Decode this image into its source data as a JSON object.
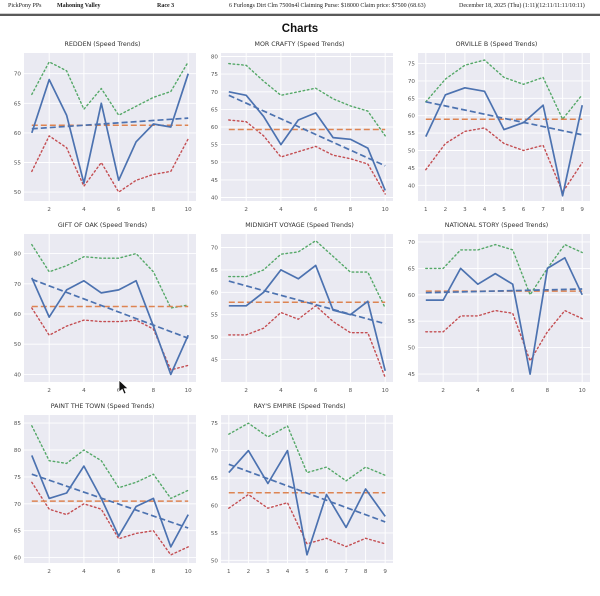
{
  "header": {
    "app": "PickPony PPs",
    "track": "Mahoning Valley",
    "race": "Race 3",
    "conditions": "6 Furlongs Dirt Clm 7500n4l Claiming Purse: $18000 Claim price: $7500 (68.63)",
    "date": "December 18, 2025 (Thu) (1:11)(12:11/11:11/10:11)"
  },
  "page_title": "Charts",
  "colors": {
    "speed": "#4c72b0",
    "trend": "#4c72b0",
    "upper": "#55a868",
    "lower": "#c44e52",
    "average": "#dd8452",
    "plot_bg": "#eaeaf2",
    "grid": "#ffffff"
  },
  "chart_data": [
    {
      "type": "line",
      "title": "REDDEN (Speed Trends)",
      "x": [
        1,
        2,
        3,
        4,
        5,
        6,
        7,
        8,
        9,
        10
      ],
      "xticks": [
        2,
        4,
        6,
        8,
        10
      ],
      "yticks": [
        50,
        55,
        60,
        65,
        70
      ],
      "ylim": [
        48.5,
        73.5
      ],
      "series": [
        {
          "name": "upper-band",
          "style": "dotted",
          "color": "#55a868",
          "width": 1.4,
          "values": [
            66.5,
            72,
            70.5,
            64,
            67.5,
            63,
            64.5,
            66,
            67,
            72
          ]
        },
        {
          "name": "lower-band",
          "style": "dotted",
          "color": "#c44e52",
          "width": 1.4,
          "values": [
            53.5,
            59.5,
            57.5,
            51,
            55,
            50,
            52,
            53,
            53.5,
            59
          ]
        },
        {
          "name": "average",
          "style": "dashed",
          "color": "#dd8452",
          "width": 1.5,
          "endpoints": [
            61.3,
            61.3
          ]
        },
        {
          "name": "trend",
          "style": "dashed",
          "color": "#4c72b0",
          "width": 1.7,
          "endpoints": [
            60.7,
            62.5
          ]
        },
        {
          "name": "speed",
          "style": "solid",
          "color": "#4c72b0",
          "width": 1.7,
          "values": [
            60,
            69,
            63,
            51.5,
            65,
            52,
            58.5,
            61.5,
            61,
            70
          ]
        }
      ]
    },
    {
      "type": "line",
      "title": "MOR CRAFTY (Speed Trends)",
      "x": [
        1,
        2,
        3,
        4,
        5,
        6,
        7,
        8,
        9,
        10
      ],
      "xticks": [
        2,
        4,
        6,
        8,
        10
      ],
      "yticks": [
        40,
        45,
        50,
        55,
        60,
        65,
        70,
        75,
        80
      ],
      "ylim": [
        39,
        81
      ],
      "series": [
        {
          "name": "upper-band",
          "style": "dotted",
          "color": "#55a868",
          "width": 1.4,
          "values": [
            78,
            77.5,
            73,
            69,
            70,
            71,
            68,
            66,
            64.5,
            57.5
          ]
        },
        {
          "name": "lower-band",
          "style": "dotted",
          "color": "#c44e52",
          "width": 1.4,
          "values": [
            62,
            61.5,
            57.5,
            51.5,
            53,
            54.5,
            52,
            51,
            49.5,
            41
          ]
        },
        {
          "name": "average",
          "style": "dashed",
          "color": "#dd8452",
          "width": 1.5,
          "endpoints": [
            59.3,
            59.3
          ]
        },
        {
          "name": "trend",
          "style": "dashed",
          "color": "#4c72b0",
          "width": 1.7,
          "endpoints": [
            69,
            49
          ]
        },
        {
          "name": "speed",
          "style": "solid",
          "color": "#4c72b0",
          "width": 1.7,
          "values": [
            70,
            69,
            63,
            55,
            62,
            64,
            57,
            56.5,
            54,
            42
          ]
        }
      ]
    },
    {
      "type": "line",
      "title": "ORVILLE B (Speed Trends)",
      "x": [
        1,
        2,
        3,
        4,
        5,
        6,
        7,
        8,
        9
      ],
      "xticks": [
        1,
        2,
        3,
        4,
        5,
        6,
        7,
        8,
        9
      ],
      "yticks": [
        40,
        45,
        50,
        55,
        60,
        65,
        70,
        75
      ],
      "ylim": [
        35.5,
        78
      ],
      "series": [
        {
          "name": "upper-band",
          "style": "dotted",
          "color": "#55a868",
          "width": 1.4,
          "values": [
            64,
            70.5,
            74.5,
            76,
            71,
            69,
            71,
            59,
            66
          ]
        },
        {
          "name": "lower-band",
          "style": "dotted",
          "color": "#c44e52",
          "width": 1.4,
          "values": [
            44.5,
            52,
            55.5,
            56.5,
            52,
            50,
            51.5,
            38,
            46.5
          ]
        },
        {
          "name": "average",
          "style": "dashed",
          "color": "#dd8452",
          "width": 1.5,
          "endpoints": [
            59,
            59
          ]
        },
        {
          "name": "trend",
          "style": "dashed",
          "color": "#4c72b0",
          "width": 1.7,
          "endpoints": [
            64,
            54.5
          ]
        },
        {
          "name": "speed",
          "style": "solid",
          "color": "#4c72b0",
          "width": 1.7,
          "values": [
            54,
            66,
            68,
            67,
            56,
            58,
            63,
            37,
            63
          ]
        }
      ]
    },
    {
      "type": "line",
      "title": "GIFT OF OAK (Speed Trends)",
      "x": [
        1,
        2,
        3,
        4,
        5,
        6,
        7,
        8,
        9,
        10
      ],
      "xticks": [
        2,
        4,
        6,
        8,
        10
      ],
      "yticks": [
        40,
        50,
        60,
        70,
        80
      ],
      "ylim": [
        37.5,
        86.5
      ],
      "series": [
        {
          "name": "upper-band",
          "style": "dotted",
          "color": "#55a868",
          "width": 1.4,
          "values": [
            83,
            74,
            76,
            79,
            78.5,
            78.5,
            80,
            74,
            62,
            63
          ]
        },
        {
          "name": "lower-band",
          "style": "dotted",
          "color": "#c44e52",
          "width": 1.4,
          "values": [
            62,
            53,
            56,
            58,
            57.5,
            57.5,
            58,
            55,
            41.5,
            43
          ]
        },
        {
          "name": "average",
          "style": "dashed",
          "color": "#dd8452",
          "width": 1.5,
          "endpoints": [
            62.5,
            62.5
          ]
        },
        {
          "name": "trend",
          "style": "dashed",
          "color": "#4c72b0",
          "width": 1.7,
          "endpoints": [
            71.5,
            52
          ]
        },
        {
          "name": "speed",
          "style": "solid",
          "color": "#4c72b0",
          "width": 1.7,
          "values": [
            72,
            59,
            68,
            71,
            67,
            68,
            71,
            56,
            40,
            53
          ]
        }
      ]
    },
    {
      "type": "line",
      "title": "MIDNIGHT VOYAGE (Speed Trends)",
      "x": [
        1,
        2,
        3,
        4,
        5,
        6,
        7,
        8,
        9,
        10
      ],
      "xticks": [
        2,
        4,
        6,
        8,
        10
      ],
      "yticks": [
        45,
        50,
        55,
        60,
        65,
        70
      ],
      "ylim": [
        40,
        73
      ],
      "series": [
        {
          "name": "upper-band",
          "style": "dotted",
          "color": "#55a868",
          "width": 1.4,
          "values": [
            63.5,
            63.5,
            65,
            68.5,
            69,
            71.5,
            68,
            64.5,
            64.5,
            56.5
          ]
        },
        {
          "name": "lower-band",
          "style": "dotted",
          "color": "#c44e52",
          "width": 1.4,
          "values": [
            50.5,
            50.5,
            52,
            55.5,
            54,
            57,
            53.5,
            51,
            51,
            41
          ]
        },
        {
          "name": "average",
          "style": "dashed",
          "color": "#dd8452",
          "width": 1.5,
          "endpoints": [
            57.8,
            57.8
          ]
        },
        {
          "name": "trend",
          "style": "dashed",
          "color": "#4c72b0",
          "width": 1.7,
          "endpoints": [
            62.5,
            53
          ]
        },
        {
          "name": "speed",
          "style": "solid",
          "color": "#4c72b0",
          "width": 1.7,
          "values": [
            57,
            57,
            60,
            65,
            63,
            66,
            56,
            55,
            58,
            42.5
          ]
        }
      ]
    },
    {
      "type": "line",
      "title": "NATIONAL STORY (Speed Trends)",
      "x": [
        1,
        2,
        3,
        4,
        5,
        6,
        7,
        8,
        9,
        10
      ],
      "xticks": [
        2,
        4,
        6,
        8,
        10
      ],
      "yticks": [
        45,
        50,
        55,
        60,
        65,
        70
      ],
      "ylim": [
        43.5,
        71.5
      ],
      "series": [
        {
          "name": "upper-band",
          "style": "dotted",
          "color": "#55a868",
          "width": 1.4,
          "values": [
            65,
            65,
            68.5,
            68.5,
            69.5,
            68.5,
            60,
            65,
            69.5,
            68
          ]
        },
        {
          "name": "lower-band",
          "style": "dotted",
          "color": "#c44e52",
          "width": 1.4,
          "values": [
            53,
            53,
            56,
            56,
            57,
            56.5,
            47.5,
            53,
            57,
            55.5
          ]
        },
        {
          "name": "average",
          "style": "dashed",
          "color": "#dd8452",
          "width": 1.5,
          "endpoints": [
            60.7,
            60.7
          ]
        },
        {
          "name": "trend",
          "style": "dashed",
          "color": "#4c72b0",
          "width": 1.7,
          "endpoints": [
            60.4,
            61.1
          ]
        },
        {
          "name": "speed",
          "style": "solid",
          "color": "#4c72b0",
          "width": 1.7,
          "values": [
            59,
            59,
            65,
            62,
            64,
            62,
            45,
            65,
            67,
            60
          ]
        }
      ]
    },
    {
      "type": "line",
      "title": "PAINT THE TOWN (Speed Trends)",
      "x": [
        1,
        2,
        3,
        4,
        5,
        6,
        7,
        8,
        9,
        10
      ],
      "xticks": [
        2,
        4,
        6,
        8,
        10
      ],
      "yticks": [
        60,
        65,
        70,
        75,
        80,
        85
      ],
      "ylim": [
        59,
        86.5
      ],
      "series": [
        {
          "name": "upper-band",
          "style": "dotted",
          "color": "#55a868",
          "width": 1.4,
          "values": [
            84.5,
            78,
            77.5,
            80,
            78,
            73,
            74,
            75.5,
            71,
            72.5
          ]
        },
        {
          "name": "lower-band",
          "style": "dotted",
          "color": "#c44e52",
          "width": 1.4,
          "values": [
            74,
            69,
            68,
            70,
            69,
            63.5,
            64.5,
            65,
            60.5,
            62
          ]
        },
        {
          "name": "average",
          "style": "dashed",
          "color": "#dd8452",
          "width": 1.5,
          "endpoints": [
            70.5,
            70.5
          ]
        },
        {
          "name": "trend",
          "style": "dashed",
          "color": "#4c72b0",
          "width": 1.7,
          "endpoints": [
            75.5,
            65.5
          ]
        },
        {
          "name": "speed",
          "style": "solid",
          "color": "#4c72b0",
          "width": 1.7,
          "values": [
            79,
            71,
            72,
            77,
            71,
            64,
            69.5,
            71,
            62,
            68
          ]
        }
      ]
    },
    {
      "type": "line",
      "title": "RAY'S EMPIRE (Speed Trends)",
      "x": [
        1,
        2,
        3,
        4,
        5,
        6,
        7,
        8,
        9
      ],
      "xticks": [
        1,
        2,
        3,
        4,
        5,
        6,
        7,
        8,
        9
      ],
      "yticks": [
        50,
        55,
        60,
        65,
        70,
        75
      ],
      "ylim": [
        49.5,
        76.5
      ],
      "series": [
        {
          "name": "upper-band",
          "style": "dotted",
          "color": "#55a868",
          "width": 1.4,
          "values": [
            73,
            75,
            72.5,
            74.5,
            66,
            67,
            64.5,
            67,
            65.5
          ]
        },
        {
          "name": "lower-band",
          "style": "dotted",
          "color": "#c44e52",
          "width": 1.4,
          "values": [
            59.5,
            62,
            59.5,
            60.5,
            53,
            54,
            52.5,
            54,
            53
          ]
        },
        {
          "name": "average",
          "style": "dashed",
          "color": "#dd8452",
          "width": 1.5,
          "endpoints": [
            62.3,
            62.3
          ]
        },
        {
          "name": "trend",
          "style": "dashed",
          "color": "#4c72b0",
          "width": 1.7,
          "endpoints": [
            67.5,
            57
          ]
        },
        {
          "name": "speed",
          "style": "solid",
          "color": "#4c72b0",
          "width": 1.7,
          "values": [
            66,
            70,
            64,
            70,
            51,
            62,
            56,
            63,
            58
          ]
        }
      ]
    }
  ]
}
